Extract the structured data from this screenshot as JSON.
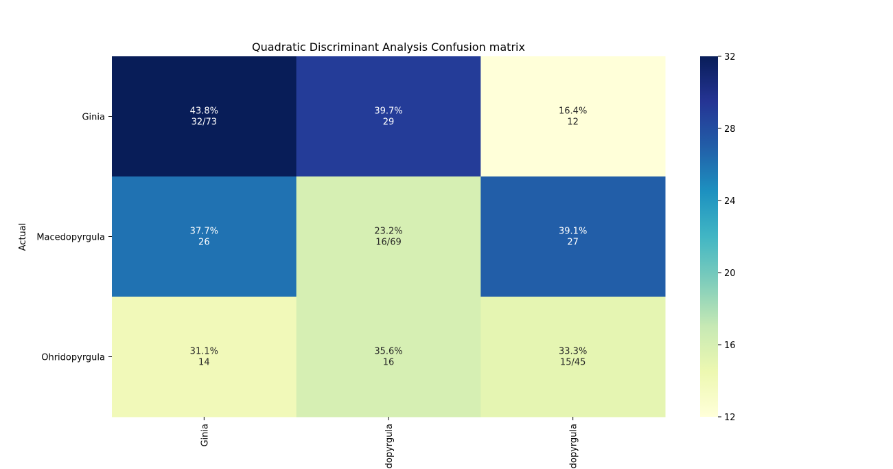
{
  "chart_data": {
    "type": "heatmap",
    "title": "Quadratic Discriminant Analysis Confusion matrix",
    "ylabel": "Actual",
    "xlabel": "",
    "row_labels": [
      "Ginia",
      "Macedopyrgula",
      "Ohridopyrgula"
    ],
    "col_labels": [
      "Ginia",
      "Macedopyrgula",
      "Ohridopyrgula"
    ],
    "values": [
      [
        32,
        29,
        12
      ],
      [
        26,
        16,
        27
      ],
      [
        14,
        16,
        15
      ]
    ],
    "annotations": [
      [
        [
          "43.8%",
          "32/73"
        ],
        [
          "39.7%",
          "29"
        ],
        [
          "16.4%",
          "12"
        ]
      ],
      [
        [
          "37.7%",
          "26"
        ],
        [
          "23.2%",
          "16/69"
        ],
        [
          "39.1%",
          "27"
        ]
      ],
      [
        [
          "31.1%",
          "14"
        ],
        [
          "35.6%",
          "16"
        ],
        [
          "33.3%",
          "15/45"
        ]
      ]
    ],
    "colorbar": {
      "min": 12,
      "max": 32,
      "ticks": [
        12,
        16,
        20,
        24,
        28,
        32
      ],
      "colormap": "YlGnBu"
    }
  }
}
